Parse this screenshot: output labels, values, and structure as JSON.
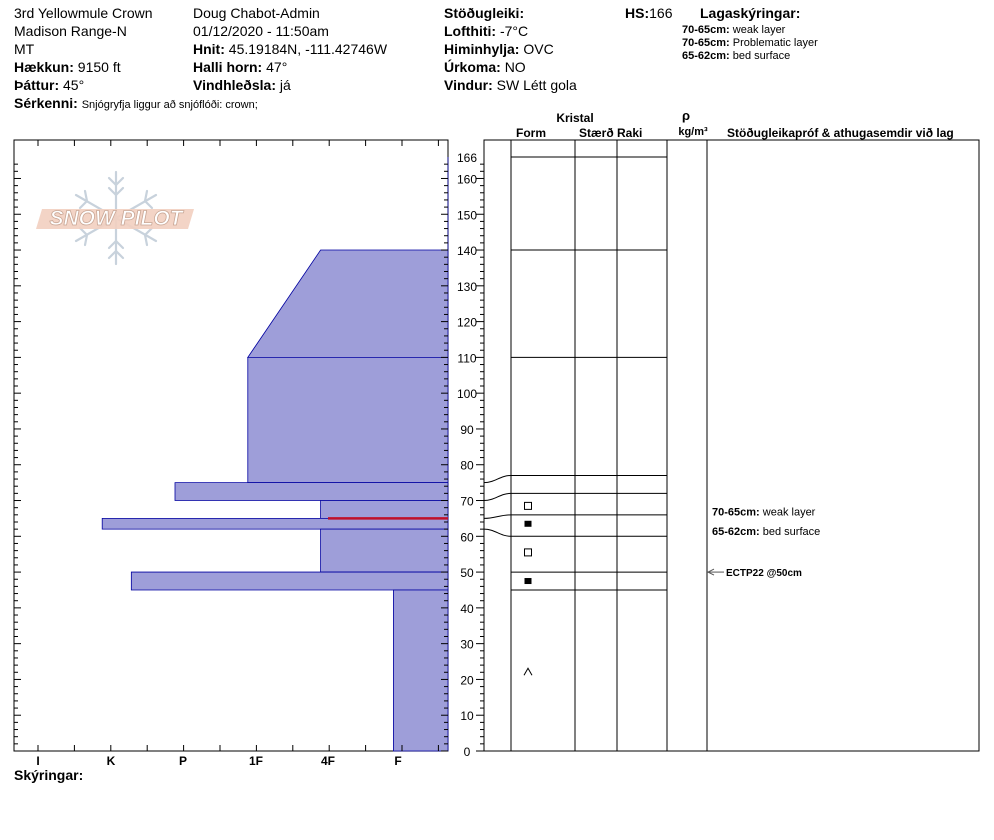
{
  "site": {
    "name": "3rd Yellowmule Crown",
    "range": "Madison Range-N",
    "state": "MT",
    "elevation_label": "Hækkun:",
    "elevation_value": "9150 ft",
    "aspect_label": "Þáttur:",
    "aspect_value": "45°",
    "features_label": "Sérkenni:",
    "features_value": "Snjógryfja liggur að snjóflóði: crown;"
  },
  "observer": {
    "name": "Doug Chabot-Admin",
    "datetime": "01/12/2020 - 11:50am",
    "coords_label": "Hnit:",
    "coords_value": "45.19184N, -111.42746W",
    "slope_label": "Halli horn:",
    "slope_value": "47°",
    "wind_loading_label": "Vindhleðsla:",
    "wind_loading_value": "já"
  },
  "conditions": {
    "stability_label": "Stöðugleiki:",
    "air_temp_label": "Lofthiti:",
    "air_temp_value": "-7°C",
    "sky_label": "Himinhylja:",
    "sky_value": "OVC",
    "precip_label": "Úrkoma:",
    "precip_value": "NO",
    "wind_label": "Vindur:",
    "wind_value": "SW Létt gola",
    "hs_label": "HS:",
    "hs_value": "166"
  },
  "legend": {
    "title": "Lagaskýringar:",
    "items": [
      {
        "range": "70-65cm:",
        "text": "weak layer"
      },
      {
        "range": "70-65cm:",
        "text": "Problematic layer"
      },
      {
        "range": "65-62cm:",
        "text": "bed surface"
      }
    ]
  },
  "logo": {
    "text": "SNOW PILOT"
  },
  "columns": {
    "kristal": "Kristal",
    "form": "Form",
    "size": "Stærð",
    "moisture": "Raki",
    "rho": "ρ",
    "density_unit": "kg/m³",
    "comments": "Stöðugleikapróf & athugasemdir við lag"
  },
  "footer": {
    "notes_label": "Skýringar:"
  },
  "colors": {
    "hardness_fill": "#9e9ed9",
    "hardness_stroke": "#0000a0",
    "weak_layer_line": "#c0102a",
    "test_arrow": "#555555"
  },
  "chart_data": {
    "type": "snow-profile",
    "depth_axis": {
      "unit": "cm",
      "min": 0,
      "max": 166,
      "ticks": [
        0,
        10,
        20,
        30,
        40,
        50,
        60,
        70,
        80,
        90,
        100,
        110,
        120,
        130,
        140,
        150,
        160,
        166
      ]
    },
    "hardness_axis": {
      "ticks": [
        "I",
        "K",
        "P",
        "1F",
        "4F",
        "F"
      ]
    },
    "hardness_layers": [
      {
        "top": 166,
        "bottom": 140,
        "hardness_top": 0,
        "hardness_bottom": 0
      },
      {
        "top": 140,
        "bottom": 110,
        "hardness_top": 3.5,
        "hardness_bottom": 5.5
      },
      {
        "top": 110,
        "bottom": 75,
        "hardness_top": 5.5,
        "hardness_bottom": 5.5
      },
      {
        "top": 75,
        "bottom": 70,
        "hardness_top": 7.5,
        "hardness_bottom": 7.5
      },
      {
        "top": 70,
        "bottom": 65,
        "hardness_top": 3.5,
        "hardness_bottom": 3.5
      },
      {
        "top": 65,
        "bottom": 62,
        "hardness_top": 9.5,
        "hardness_bottom": 9.5
      },
      {
        "top": 62,
        "bottom": 50,
        "hardness_top": 3.5,
        "hardness_bottom": 3.5
      },
      {
        "top": 50,
        "bottom": 45,
        "hardness_top": 8.7,
        "hardness_bottom": 8.7
      },
      {
        "top": 45,
        "bottom": 0,
        "hardness_top": 1.5,
        "hardness_bottom": 1.5
      }
    ],
    "weak_layer_depth": 65,
    "layer_boundaries": [
      166,
      140,
      110,
      77,
      72,
      66,
      60,
      50,
      45
    ],
    "boundary_depths_left": [
      166,
      140,
      110,
      75,
      70,
      65,
      62,
      50,
      45
    ],
    "grain_symbols": [
      {
        "depth": 68.5,
        "symbol": "open-square"
      },
      {
        "depth": 63.5,
        "symbol": "filled-square"
      },
      {
        "depth": 55.5,
        "symbol": "open-square"
      },
      {
        "depth": 47.5,
        "symbol": "filled-square"
      },
      {
        "depth": 22,
        "symbol": "caret"
      }
    ],
    "comments": [
      {
        "depth": 67,
        "range": "70-65cm:",
        "text": "weak layer"
      },
      {
        "depth": 61.5,
        "range": "65-62cm:",
        "text": "bed surface"
      }
    ],
    "tests": [
      {
        "depth": 50,
        "text": "ECTP22 @50cm"
      }
    ]
  }
}
